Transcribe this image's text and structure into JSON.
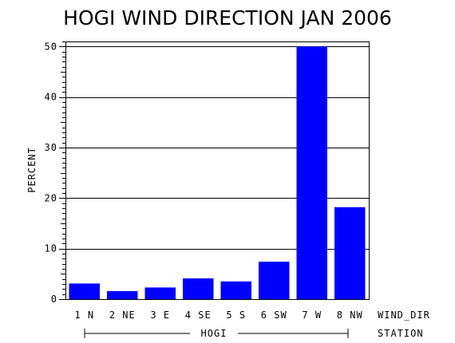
{
  "chart_data": {
    "type": "bar",
    "title": "HOGI WIND DIRECTION JAN 2006",
    "ylabel": "PERCENT",
    "xlabel": "WIND_DIR",
    "group_label": "HOGI",
    "group_axis_label": "STATION",
    "categories": [
      "1 N",
      "2 NE",
      "3 E",
      "4 SE",
      "5 S",
      "6 SW",
      "7 W",
      "8 NW"
    ],
    "values": [
      3.1,
      1.6,
      2.3,
      4.1,
      3.5,
      7.4,
      50.0,
      18.2
    ],
    "ylim": [
      0,
      51
    ],
    "yticks": [
      0,
      10,
      20,
      30,
      40,
      50
    ],
    "grid": true,
    "colors": {
      "bar": "#0000ff",
      "axis": "#000000",
      "grid": "#000000",
      "background": "#ffffff"
    }
  }
}
